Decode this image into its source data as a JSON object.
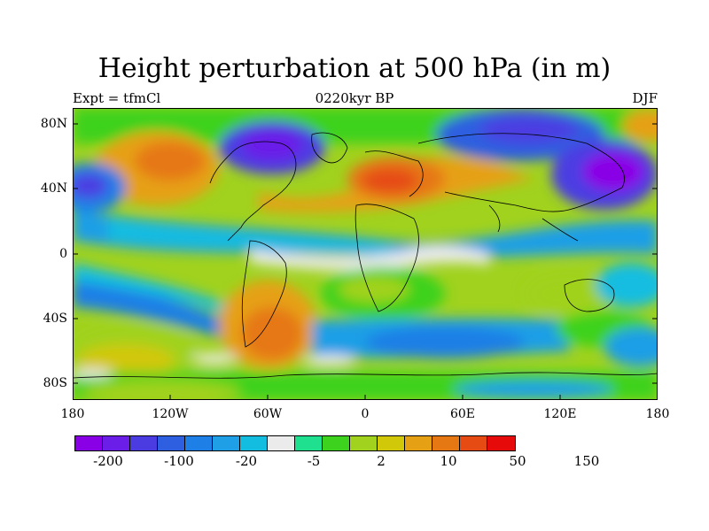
{
  "header": {
    "title": "Height perturbation at 500 hPa (in m)",
    "left_label": "Expt = tfmCl",
    "center_label": "0220kyr BP",
    "right_label": "DJF"
  },
  "axes": {
    "y_ticks": [
      "80N",
      "40N",
      "0",
      "40S",
      "80S"
    ],
    "x_ticks": [
      "180",
      "120W",
      "60W",
      "0",
      "60E",
      "120E",
      "180"
    ]
  },
  "colorbar": {
    "colors": [
      "#8a00e6",
      "#6a1ee8",
      "#4b3ce2",
      "#2e5fe0",
      "#1e7fe6",
      "#1e9fe6",
      "#12bde0",
      "#ebebeb",
      "#1ee08f",
      "#3cd21e",
      "#a0d21e",
      "#d2c80a",
      "#e6a014",
      "#e67814",
      "#e64b14",
      "#e60a0a"
    ],
    "labels": [
      "-200",
      "-100",
      "-20",
      "-5",
      "2",
      "10",
      "50",
      "150"
    ]
  }
}
